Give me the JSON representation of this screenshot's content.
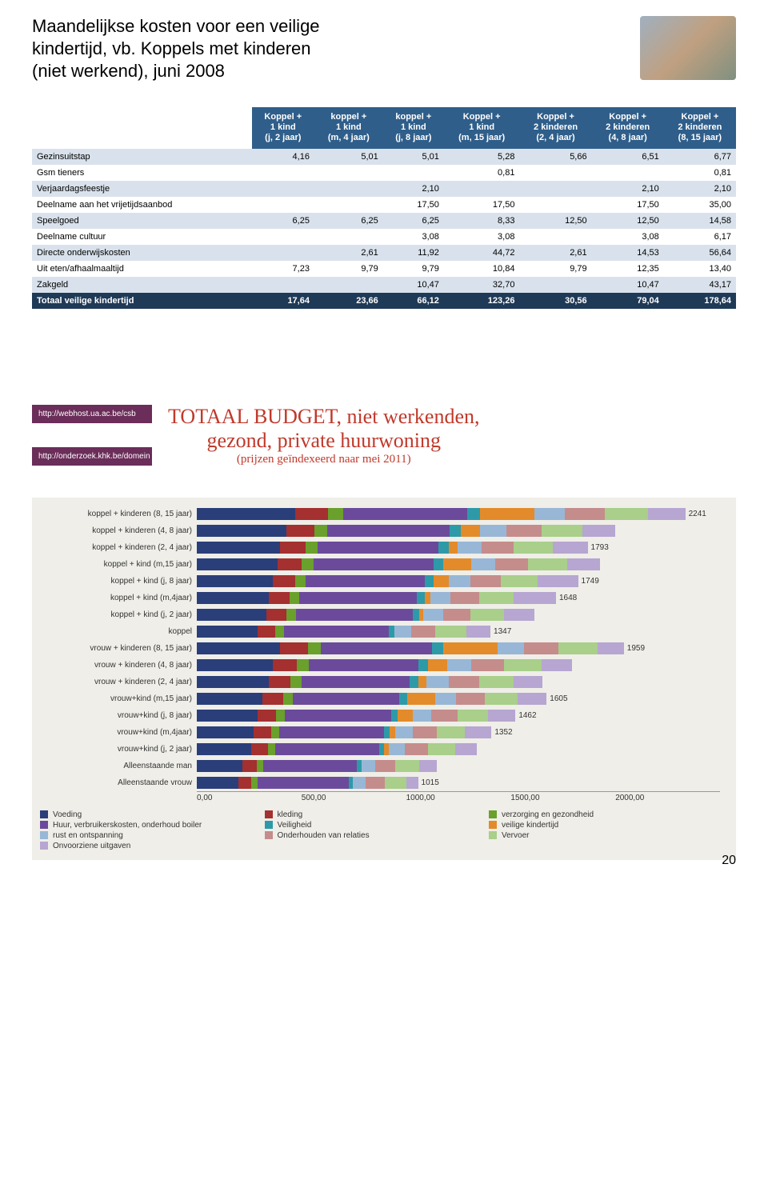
{
  "header": {
    "line1": "Maandelijkse kosten voor een veilige",
    "line2": "kindertijd, vb. Koppels met kinderen",
    "line3": "(niet werkend), juni 2008"
  },
  "table": {
    "header_bg": "#2f5e8a",
    "row_odd_bg": "#d9e2ec",
    "row_even_bg": "#ffffff",
    "total_bg": "#1f3a57",
    "columns": [
      "",
      "Koppel +\n1 kind\n(j, 2 jaar)",
      "koppel +\n1 kind\n(m, 4 jaar)",
      "koppel +\n1 kind\n(j, 8 jaar)",
      "Koppel +\n1 kind\n(m, 15 jaar)",
      "Koppel +\n2 kinderen\n(2, 4 jaar)",
      "Koppel +\n2 kinderen\n(4, 8 jaar)",
      "Koppel +\n2 kinderen\n(8, 15 jaar)"
    ],
    "rows": [
      [
        "Gezinsuitstap",
        "4,16",
        "5,01",
        "5,01",
        "5,28",
        "5,66",
        "6,51",
        "6,77"
      ],
      [
        "Gsm tieners",
        "",
        "",
        "",
        "0,81",
        "",
        "",
        "0,81"
      ],
      [
        "Verjaardagsfeestje",
        "",
        "",
        "2,10",
        "",
        "",
        "2,10",
        "2,10"
      ],
      [
        "Deelname aan het vrijetijdsaanbod",
        "",
        "",
        "17,50",
        "17,50",
        "",
        "17,50",
        "35,00"
      ],
      [
        "Speelgoed",
        "6,25",
        "6,25",
        "6,25",
        "8,33",
        "12,50",
        "12,50",
        "14,58"
      ],
      [
        "Deelname cultuur",
        "",
        "",
        "3,08",
        "3,08",
        "",
        "3,08",
        "6,17"
      ],
      [
        "Directe onderwijskosten",
        "",
        "2,61",
        "11,92",
        "44,72",
        "2,61",
        "14,53",
        "56,64"
      ],
      [
        "Uit eten/afhaalmaaltijd",
        "7,23",
        "9,79",
        "9,79",
        "10,84",
        "9,79",
        "12,35",
        "13,40"
      ],
      [
        "Zakgeld",
        "",
        "",
        "10,47",
        "32,70",
        "",
        "10,47",
        "43,17"
      ]
    ],
    "total_row": [
      "Totaal veilige kindertijd",
      "17,64",
      "23,66",
      "66,12",
      "123,26",
      "30,56",
      "79,04",
      "178,64"
    ]
  },
  "links": {
    "l1": "http://webhost.ua.ac.be/csb",
    "l2": "http://onderzoek.khk.be/domein"
  },
  "chart_title": {
    "l1": "TOTAAL BUDGET, niet werkenden,",
    "l2": "gezond, private huurwoning",
    "l3": "(prijzen geïndexeerd naar mei 2011)"
  },
  "chart": {
    "xmax": 2400,
    "xticks": [
      "0,00",
      "500,00",
      "1000,00",
      "1500,00",
      "2000,00"
    ],
    "legend": [
      {
        "label": "Voeding",
        "color": "#2a3e7a"
      },
      {
        "label": "kleding",
        "color": "#a43030"
      },
      {
        "label": "verzorging en gezondheid",
        "color": "#6aa02c"
      },
      {
        "label": "Huur, verbruikerskosten, onderhoud boiler",
        "color": "#6b4a9c"
      },
      {
        "label": "Veiligheid",
        "color": "#2e9aa8"
      },
      {
        "label": "veilige kindertijd",
        "color": "#e38b2b"
      },
      {
        "label": "rust en ontspanning",
        "color": "#98b7d6"
      },
      {
        "label": "Onderhouden van relaties",
        "color": "#c58c8c"
      },
      {
        "label": "Vervoer",
        "color": "#a9cf8a"
      },
      {
        "label": "Onvoorziene uitgaven",
        "color": "#b6a6d1"
      }
    ],
    "rows": [
      {
        "label": "koppel + kinderen (8, 15 jaar)",
        "total": 2241,
        "segs": [
          450,
          150,
          70,
          570,
          60,
          250,
          140,
          180,
          200,
          171
        ]
      },
      {
        "label": "koppel + kinderen (4, 8 jaar)",
        "total": null,
        "segs": [
          410,
          130,
          60,
          560,
          50,
          90,
          120,
          160,
          190,
          150
        ]
      },
      {
        "label": "koppel + kinderen (2, 4 jaar)",
        "total": 1793,
        "segs": [
          380,
          120,
          55,
          555,
          45,
          40,
          110,
          150,
          180,
          158
        ]
      },
      {
        "label": "koppel + kind (m,15 jaar)",
        "total": null,
        "segs": [
          370,
          110,
          55,
          550,
          45,
          130,
          110,
          150,
          180,
          150
        ]
      },
      {
        "label": "koppel + kind (j, 8 jaar)",
        "total": 1749,
        "segs": [
          350,
          100,
          50,
          545,
          40,
          70,
          100,
          140,
          170,
          184
        ]
      },
      {
        "label": "koppel + kind (m,4jaar)",
        "total": 1648,
        "segs": [
          330,
          95,
          45,
          540,
          35,
          25,
          95,
          130,
          160,
          193
        ]
      },
      {
        "label": "koppel + kind (j, 2 jaar)",
        "total": null,
        "segs": [
          320,
          90,
          45,
          535,
          30,
          20,
          90,
          125,
          155,
          140
        ]
      },
      {
        "label": "koppel",
        "total": 1347,
        "segs": [
          280,
          80,
          40,
          480,
          25,
          0,
          80,
          110,
          140,
          112
        ]
      },
      {
        "label": "vrouw + kinderen (8, 15 jaar)",
        "total": 1959,
        "segs": [
          380,
          130,
          60,
          510,
          50,
          250,
          120,
          160,
          180,
          119
        ]
      },
      {
        "label": "vrouw + kinderen (4, 8 jaar)",
        "total": null,
        "segs": [
          350,
          110,
          55,
          500,
          45,
          90,
          110,
          150,
          170,
          140
        ]
      },
      {
        "label": "vrouw + kinderen (2, 4 jaar)",
        "total": null,
        "segs": [
          330,
          100,
          50,
          495,
          40,
          40,
          100,
          140,
          160,
          130
        ]
      },
      {
        "label": "vrouw+kind (m,15 jaar)",
        "total": 1605,
        "segs": [
          300,
          95,
          45,
          490,
          35,
          130,
          95,
          130,
          150,
          135
        ]
      },
      {
        "label": "vrouw+kind (j, 8 jaar)",
        "total": 1462,
        "segs": [
          280,
          85,
          40,
          485,
          30,
          70,
          85,
          120,
          140,
          127
        ]
      },
      {
        "label": "vrouw+kind (m,4jaar)",
        "total": 1352,
        "segs": [
          260,
          80,
          38,
          480,
          28,
          25,
          80,
          110,
          130,
          121
        ]
      },
      {
        "label": "vrouw+kind (j, 2 jaar)",
        "total": null,
        "segs": [
          250,
          75,
          35,
          475,
          25,
          20,
          75,
          105,
          125,
          100
        ]
      },
      {
        "label": "Alleenstaande man",
        "total": null,
        "segs": [
          210,
          65,
          30,
          430,
          20,
          0,
          65,
          90,
          110,
          80
        ]
      },
      {
        "label": "Alleenstaande vrouw",
        "total": 1015,
        "segs": [
          190,
          60,
          28,
          420,
          18,
          0,
          60,
          85,
          100,
          54
        ]
      }
    ]
  },
  "page_number": "20"
}
